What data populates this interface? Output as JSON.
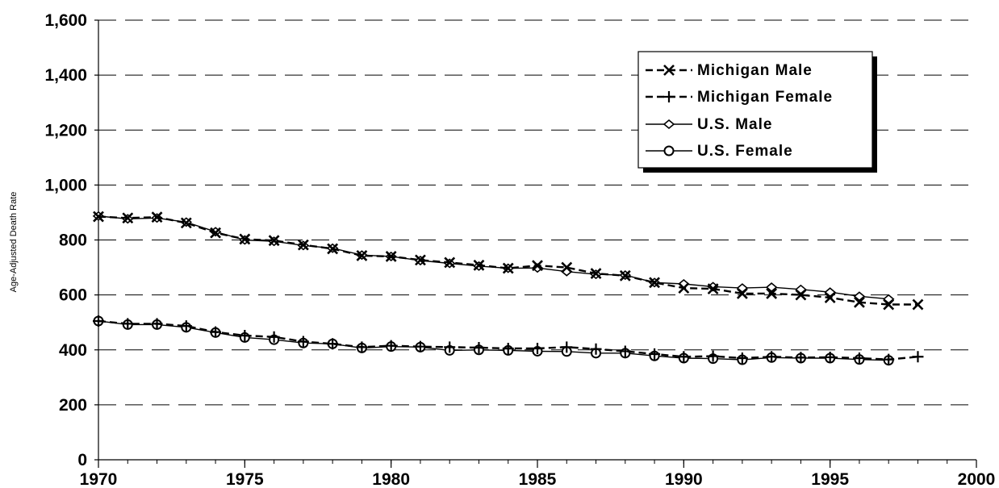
{
  "chart_data": {
    "type": "line",
    "title": "",
    "xlabel": "",
    "ylabel": "Age-Adjusted Death Rate",
    "xlim": [
      1970,
      2000
    ],
    "ylim": [
      0,
      1600
    ],
    "x_ticks": [
      1970,
      1975,
      1980,
      1985,
      1990,
      1995,
      2000
    ],
    "x_tick_labels": [
      "1970",
      "1975",
      "1980",
      "1985",
      "1990",
      "1995",
      "2000"
    ],
    "y_ticks": [
      0,
      200,
      400,
      600,
      800,
      1000,
      1200,
      1400,
      1600
    ],
    "y_tick_labels": [
      "0",
      "200",
      "400",
      "600",
      "800",
      "1,000",
      "1,200",
      "1,400",
      "1,600"
    ],
    "grid": "horizontal dashed",
    "legend_position": "top-right",
    "series": [
      {
        "name": "Michigan Male",
        "marker": "x",
        "line": "dashed",
        "x": [
          1970,
          1971,
          1972,
          1973,
          1974,
          1975,
          1976,
          1977,
          1978,
          1979,
          1980,
          1981,
          1982,
          1983,
          1984,
          1985,
          1986,
          1987,
          1988,
          1989,
          1990,
          1991,
          1992,
          1993,
          1994,
          1995,
          1996,
          1997,
          1998
        ],
        "values": [
          885,
          880,
          883,
          862,
          826,
          803,
          798,
          782,
          768,
          743,
          740,
          727,
          718,
          708,
          697,
          707,
          700,
          678,
          670,
          645,
          625,
          622,
          605,
          605,
          600,
          590,
          573,
          565,
          565
        ]
      },
      {
        "name": "Michigan Female",
        "marker": "plus",
        "line": "dashed",
        "x": [
          1970,
          1971,
          1972,
          1973,
          1974,
          1975,
          1976,
          1977,
          1978,
          1979,
          1980,
          1981,
          1982,
          1983,
          1984,
          1985,
          1986,
          1987,
          1988,
          1989,
          1990,
          1991,
          1992,
          1993,
          1994,
          1995,
          1996,
          1997,
          1998
        ],
        "values": [
          505,
          495,
          495,
          487,
          465,
          452,
          447,
          430,
          422,
          410,
          415,
          412,
          410,
          408,
          405,
          405,
          410,
          403,
          395,
          385,
          375,
          377,
          370,
          375,
          372,
          373,
          370,
          365,
          375
        ]
      },
      {
        "name": "U.S. Male",
        "marker": "diamond",
        "line": "solid",
        "x": [
          1970,
          1971,
          1972,
          1973,
          1974,
          1975,
          1976,
          1977,
          1978,
          1979,
          1980,
          1981,
          1982,
          1983,
          1984,
          1985,
          1986,
          1987,
          1988,
          1989,
          1990,
          1991,
          1992,
          1993,
          1994,
          1995,
          1996,
          1997
        ],
        "values": [
          887,
          877,
          880,
          865,
          830,
          800,
          795,
          780,
          770,
          745,
          740,
          725,
          715,
          705,
          697,
          698,
          685,
          675,
          672,
          645,
          640,
          630,
          625,
          628,
          620,
          610,
          595,
          585
        ]
      },
      {
        "name": "U.S. Female",
        "marker": "circle",
        "line": "solid",
        "x": [
          1970,
          1971,
          1972,
          1973,
          1974,
          1975,
          1976,
          1977,
          1978,
          1979,
          1980,
          1981,
          1982,
          1983,
          1984,
          1985,
          1986,
          1987,
          1988,
          1989,
          1990,
          1991,
          1992,
          1993,
          1994,
          1995,
          1996,
          1997
        ],
        "values": [
          505,
          492,
          492,
          482,
          463,
          445,
          437,
          425,
          422,
          407,
          412,
          410,
          398,
          400,
          398,
          395,
          394,
          388,
          388,
          378,
          370,
          368,
          364,
          372,
          370,
          370,
          365,
          362
        ]
      }
    ]
  }
}
